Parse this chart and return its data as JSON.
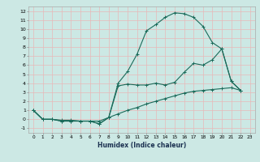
{
  "title": "",
  "xlabel": "Humidex (Indice chaleur)",
  "background_color": "#cce8e4",
  "grid_color": "#e8b8b8",
  "line_color": "#1a6b5a",
  "xlim": [
    -0.5,
    23.5
  ],
  "ylim": [
    -1.5,
    12.5
  ],
  "xticks": [
    0,
    1,
    2,
    3,
    4,
    5,
    6,
    7,
    8,
    9,
    10,
    11,
    12,
    13,
    14,
    15,
    16,
    17,
    18,
    19,
    20,
    21,
    22,
    23
  ],
  "yticks": [
    -1,
    0,
    1,
    2,
    3,
    4,
    5,
    6,
    7,
    8,
    9,
    10,
    11,
    12
  ],
  "curve1_x": [
    0,
    1,
    2,
    3,
    4,
    5,
    6,
    7,
    8,
    9,
    10,
    11,
    12,
    13,
    14,
    15,
    16,
    17,
    18,
    19,
    20,
    21,
    22
  ],
  "curve1_y": [
    1,
    0,
    0,
    -0.2,
    -0.2,
    -0.2,
    -0.2,
    -0.5,
    0.2,
    4.0,
    5.3,
    7.2,
    9.8,
    10.5,
    11.3,
    11.8,
    11.7,
    11.3,
    10.3,
    8.5,
    7.8,
    4.2,
    3.2
  ],
  "curve2_x": [
    0,
    1,
    2,
    3,
    4,
    5,
    6,
    7,
    8,
    9,
    10,
    11,
    12,
    13,
    14,
    15,
    16,
    17,
    18,
    19,
    20,
    21,
    22
  ],
  "curve2_y": [
    1,
    0,
    0,
    -0.2,
    -0.2,
    -0.2,
    -0.2,
    -0.5,
    0.2,
    3.7,
    3.9,
    3.8,
    3.8,
    4.0,
    3.8,
    4.1,
    5.2,
    6.2,
    6.0,
    6.6,
    7.8,
    4.2,
    3.2
  ],
  "curve3_x": [
    0,
    1,
    2,
    3,
    4,
    5,
    6,
    7,
    8,
    9,
    10,
    11,
    12,
    13,
    14,
    15,
    16,
    17,
    18,
    19,
    20,
    21,
    22
  ],
  "curve3_y": [
    1,
    0,
    0,
    -0.1,
    -0.1,
    -0.2,
    -0.2,
    -0.2,
    0.2,
    0.6,
    1.0,
    1.3,
    1.7,
    2.0,
    2.3,
    2.6,
    2.9,
    3.1,
    3.2,
    3.3,
    3.4,
    3.5,
    3.2
  ],
  "marker": "+"
}
